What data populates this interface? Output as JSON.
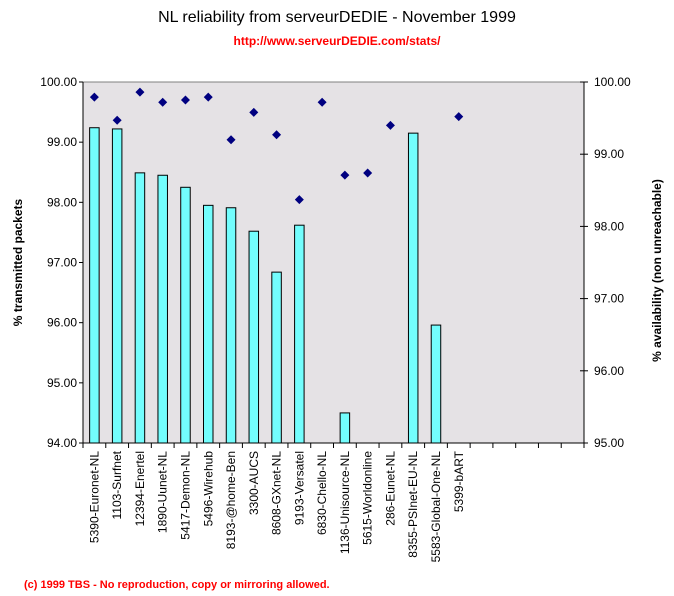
{
  "chart_data": {
    "type": "bar",
    "title": "NL reliability from serveurDEDIE - November 1999",
    "subtitle": "http://www.serveurDEDIE.com/stats/",
    "footer": "(c) 1999 TBS - No reproduction, copy or mirroring allowed.",
    "ylabel": "% transmitted packets",
    "y2label": "% availability (non unreachable)",
    "ylim": [
      94,
      100
    ],
    "y2lim": [
      95,
      100
    ],
    "yticks": [
      "94.00",
      "95.00",
      "96.00",
      "97.00",
      "98.00",
      "99.00",
      "100.00"
    ],
    "y2ticks": [
      "95.00",
      "96.00",
      "97.00",
      "98.00",
      "99.00",
      "100.00"
    ],
    "slots": 22,
    "grid": false,
    "plot_background": "#e5e2e5",
    "bar_color": "#73fdfd",
    "marker_color": "#000080",
    "categories": [
      "5390-Euronet-NL",
      "1103-Surfnet",
      "12394-Enertel",
      "1890-Uunet-NL",
      "5417-Demon-NL",
      "5496-Wirehub",
      "8193-@home-Ben",
      "3300-AUCS",
      "8608-GXnet-NL",
      "9193-Versatel",
      "6830-Chello-NL",
      "1136-Unisource-NL",
      "5615-Worldonline",
      "286-Eunet-NL",
      "8355-PSInet-EU-NL",
      "5583-Global-One-NL",
      "5399-bART"
    ],
    "series": [
      {
        "name": "% transmitted packets",
        "type": "bar",
        "axis": "left",
        "values": [
          99.24,
          99.22,
          98.49,
          98.45,
          98.25,
          97.95,
          97.91,
          97.52,
          96.84,
          97.62,
          null,
          94.5,
          null,
          null,
          99.15,
          95.96,
          null
        ]
      },
      {
        "name": "% availability (non unreachable)",
        "type": "scatter",
        "axis": "right",
        "values": [
          99.79,
          99.47,
          99.86,
          99.72,
          99.75,
          99.79,
          99.2,
          99.58,
          99.27,
          98.37,
          99.72,
          98.71,
          98.74,
          99.4,
          null,
          null,
          99.52
        ]
      }
    ]
  }
}
